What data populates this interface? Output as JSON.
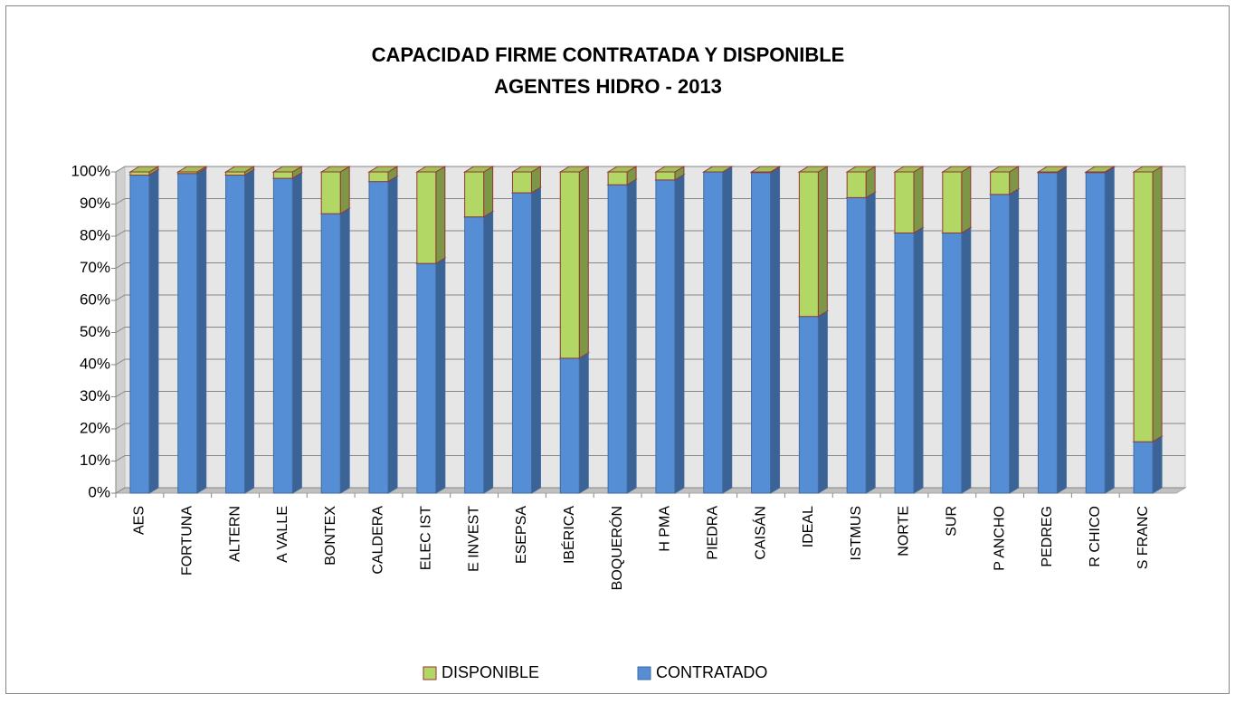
{
  "chart_data": {
    "type": "stacked_bar_3d",
    "title": "CAPACIDAD FIRME CONTRATADA Y DISPONIBLE",
    "subtitle": "AGENTES  HIDRO - 2013",
    "categories": [
      "AES",
      "FORTUNA",
      "ALTERN",
      "A VALLE",
      "BONTEX",
      "CALDERA",
      "ELEC IST",
      "E INVEST",
      "ESEPSA",
      "IBÉRICA",
      "BOQUERÓN",
      "H PMA",
      "PIEDRA",
      "CAISÁN",
      "IDEAL",
      "ISTMUS",
      "NORTE",
      "SUR",
      "P ANCHO",
      "PEDREG",
      "R CHICO",
      "S FRANC"
    ],
    "series": [
      {
        "name": "CONTRATADO",
        "color": "#558ed5",
        "values": [
          99,
          99.5,
          99,
          98,
          87,
          97,
          71.5,
          86,
          93.5,
          42,
          96,
          97.5,
          100,
          99.8,
          55,
          92,
          81,
          81,
          93,
          99.8,
          99.8,
          16
        ]
      },
      {
        "name": "DISPONIBLE",
        "color": "#b3d765",
        "values": [
          1,
          0.5,
          1,
          2,
          13,
          3,
          28.5,
          14,
          6.5,
          58,
          4,
          2.5,
          0,
          0.2,
          45,
          8,
          19,
          19,
          7,
          0.2,
          0.2,
          84
        ]
      }
    ],
    "ylim": [
      0,
      100
    ],
    "yticks": [
      {
        "value": 0,
        "label": "0%"
      },
      {
        "value": 10,
        "label": "10%"
      },
      {
        "value": 20,
        "label": "20%"
      },
      {
        "value": 30,
        "label": "30%"
      },
      {
        "value": 40,
        "label": "40%"
      },
      {
        "value": 50,
        "label": "50%"
      },
      {
        "value": 60,
        "label": "60%"
      },
      {
        "value": 70,
        "label": "70%"
      },
      {
        "value": 80,
        "label": "80%"
      },
      {
        "value": 90,
        "label": "90%"
      },
      {
        "value": 100,
        "label": "100%"
      }
    ],
    "grid": true,
    "legend": "bottom"
  }
}
